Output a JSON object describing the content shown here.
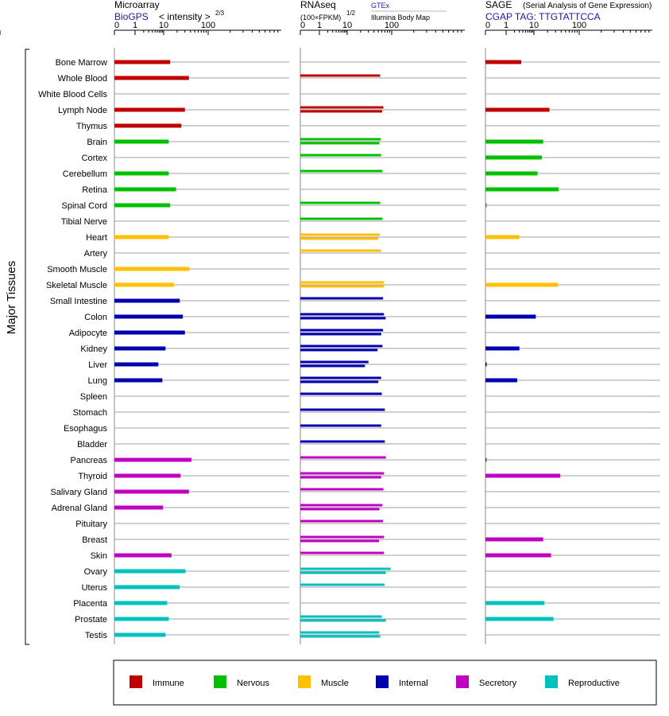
{
  "chart_data": {
    "type": "bar",
    "ylabel": "Major Tissues",
    "tissues": [
      "Bone Marrow",
      "Whole Blood",
      "White Blood Cells",
      "Lymph Node",
      "Thymus",
      "Brain",
      "Cortex",
      "Cerebellum",
      "Retina",
      "Spinal Cord",
      "Tibial Nerve",
      "Heart",
      "Artery",
      "Smooth Muscle",
      "Skeletal Muscle",
      "Small Intestine",
      "Colon",
      "Adipocyte",
      "Kidney",
      "Liver",
      "Lung",
      "Spleen",
      "Stomach",
      "Esophagus",
      "Bladder",
      "Pancreas",
      "Thyroid",
      "Salivary Gland",
      "Adrenal Gland",
      "Pituitary",
      "Breast",
      "Skin",
      "Ovary",
      "Uterus",
      "Placenta",
      "Prostate",
      "Testis"
    ],
    "tissue_groups": [
      "Immune",
      "Immune",
      "Immune",
      "Immune",
      "Immune",
      "Nervous",
      "Nervous",
      "Nervous",
      "Nervous",
      "Nervous",
      "Nervous",
      "Muscle",
      "Muscle",
      "Muscle",
      "Muscle",
      "Internal",
      "Internal",
      "Internal",
      "Internal",
      "Internal",
      "Internal",
      "Internal",
      "Internal",
      "Internal",
      "Internal",
      "Secretory",
      "Secretory",
      "Secretory",
      "Secretory",
      "Secretory",
      "Secretory",
      "Secretory",
      "Reproductive",
      "Reproductive",
      "Reproductive",
      "Reproductive",
      "Reproductive"
    ],
    "legend": [
      {
        "name": "Immune",
        "color": "#c00000"
      },
      {
        "name": "Nervous",
        "color": "#00c000"
      },
      {
        "name": "Muscle",
        "color": "#ffc000"
      },
      {
        "name": "Internal",
        "color": "#0000b0"
      },
      {
        "name": "Secretory",
        "color": "#c000c0"
      },
      {
        "name": "Reproductive",
        "color": "#00c0c0"
      }
    ],
    "axis_ticks": [
      "0",
      "1",
      "10",
      "100",
      "1000"
    ],
    "panels": [
      {
        "id": "microarray",
        "title": "Microarray",
        "subtitle": "BioGPS",
        "measure": "< intensity >",
        "exponent": "2/3",
        "values": [
          [
            14
          ],
          [
            37
          ],
          [],
          [
            30
          ],
          [
            25
          ],
          [
            13
          ],
          [],
          [
            13
          ],
          [
            19
          ],
          [
            14
          ],
          [],
          [
            13
          ],
          [],
          [
            38
          ],
          [
            17
          ],
          [
            23
          ],
          [
            27
          ],
          [
            30
          ],
          [
            11
          ],
          [
            6.5
          ],
          [
            9
          ],
          [],
          [],
          [],
          [],
          [
            42
          ],
          [
            24
          ],
          [
            37
          ],
          [
            9.5
          ],
          [],
          [],
          [
            15
          ],
          [
            31
          ],
          [
            23
          ],
          [
            12
          ],
          [
            13
          ],
          [
            11
          ]
        ]
      },
      {
        "id": "rnaseq",
        "title": "RNAseq",
        "measure": "(100×FPKM)",
        "exponent": "1/2",
        "source_top": "GTEx",
        "source_bottom": "Illumina Body Map",
        "values": [
          [],
          [
            55
          ],
          [],
          [
            65,
            61
          ],
          [],
          [
            57,
            53
          ],
          [
            58
          ],
          [
            62
          ],
          [],
          [
            55
          ],
          [
            62
          ],
          [
            54,
            50
          ],
          [
            58
          ],
          [],
          [
            67,
            67
          ],
          [
            64
          ],
          [
            67,
            73
          ],
          [
            64,
            58
          ],
          [
            62,
            48
          ],
          [
            30,
            25
          ],
          [
            58,
            50
          ],
          [
            60
          ],
          [
            70
          ],
          [
            58
          ],
          [
            70
          ],
          [
            74
          ],
          [
            67,
            58
          ],
          [
            65
          ],
          [
            62,
            53
          ],
          [
            64
          ],
          [
            67,
            52
          ],
          [
            67
          ],
          [
            95,
            74
          ],
          [
            69
          ],
          [],
          [
            60,
            74
          ],
          [
            52,
            55
          ]
        ]
      },
      {
        "id": "sage",
        "title": "SAGE",
        "subtitle_note": "(Serial Analysis of Gene Expression)",
        "subtitle": "CGAP TAG: TTGTATTCCA",
        "values": [
          [
            3.5
          ],
          [],
          [],
          [
            22
          ],
          [],
          [
            16
          ],
          [
            15
          ],
          [
            12
          ],
          [
            35
          ],
          [
            0.05
          ],
          [],
          [
            3
          ],
          [],
          [],
          [
            34
          ],
          [],
          [
            11
          ],
          [],
          [
            3
          ],
          [
            0.02
          ],
          [
            2.5
          ],
          [],
          [],
          [],
          [],
          [
            0.03
          ],
          [
            38
          ],
          [],
          [],
          [],
          [
            16
          ],
          [
            24
          ],
          [],
          [],
          [
            17
          ],
          [
            27
          ],
          []
        ]
      }
    ]
  }
}
